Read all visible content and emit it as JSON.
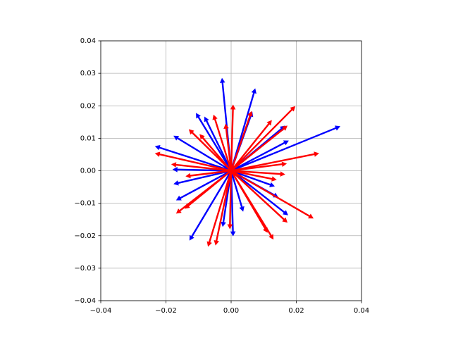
{
  "chart_data": {
    "type": "quiver",
    "xlim": [
      -0.04,
      0.04
    ],
    "ylim": [
      -0.04,
      0.04
    ],
    "xticks": [
      {
        "value": -0.04,
        "label": "−0.04"
      },
      {
        "value": -0.02,
        "label": "−0.02"
      },
      {
        "value": 0,
        "label": "0.00"
      },
      {
        "value": 0.02,
        "label": "0.02"
      },
      {
        "value": 0.04,
        "label": "0.04"
      }
    ],
    "yticks": [
      {
        "value": -0.04,
        "label": "−0.04"
      },
      {
        "value": -0.03,
        "label": "−0.03"
      },
      {
        "value": -0.02,
        "label": "−0.02"
      },
      {
        "value": -0.01,
        "label": "−0.01"
      },
      {
        "value": 0,
        "label": "0.00"
      },
      {
        "value": 0.01,
        "label": "0.01"
      },
      {
        "value": 0.02,
        "label": "0.02"
      },
      {
        "value": 0.03,
        "label": "0.03"
      },
      {
        "value": 0.04,
        "label": "0.04"
      }
    ],
    "grid": true,
    "series": [
      {
        "color": "#0000ff",
        "u": [
          -0.0028,
          0.0074,
          0.0335,
          -0.0234,
          -0.018,
          -0.0128,
          0.0006,
          0.0175,
          0.0177,
          -0.0108,
          -0.0177,
          -0.0177,
          -0.0169,
          0.0166,
          0.0065,
          0.0134,
          -0.0026,
          0.0145,
          -0.0082,
          0.0037
        ],
        "v": [
          0.0286,
          0.0254,
          0.0137,
          0.0076,
          0.0004,
          -0.0215,
          -0.0202,
          -0.0137,
          0.0093,
          0.0178,
          0.0108,
          -0.0041,
          -0.0091,
          0.0139,
          0.0182,
          -0.0048,
          -0.0173,
          -0.0082,
          0.0167,
          -0.0126
        ]
      },
      {
        "color": "#ff0000",
        "u": [
          0.0197,
          0.027,
          0.0253,
          -0.0048,
          -0.0071,
          0.013,
          -0.0169,
          -0.0234,
          -0.0184,
          -0.013,
          -0.0054,
          0.0006,
          0.0063,
          0.0173,
          0.0171,
          0.0173,
          0.0112,
          -0.0004,
          -0.014,
          0.014,
          -0.0143,
          -0.0097,
          -0.0017,
          0.0125,
          0.0166
        ],
        "v": [
          0.0199,
          0.0054,
          -0.0147,
          -0.023,
          -0.0234,
          -0.0212,
          -0.0132,
          0.0054,
          0.002,
          0.0128,
          0.0173,
          0.0204,
          0.0184,
          0.0139,
          0.0022,
          -0.016,
          -0.0191,
          -0.018,
          -0.0017,
          -0.0028,
          -0.0117,
          0.0113,
          0.0145,
          0.0156,
          -0.0011
        ]
      }
    ]
  }
}
